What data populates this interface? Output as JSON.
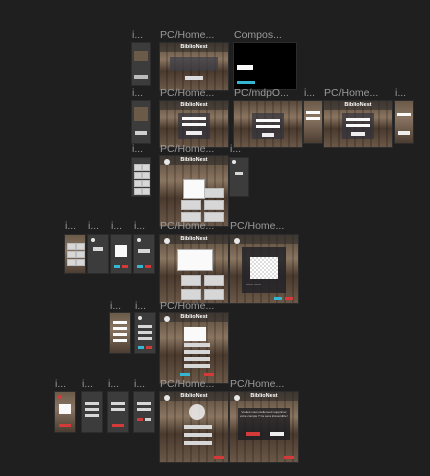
{
  "labels": {
    "c1": "i...",
    "c2": "PC/Home...",
    "c3": "Compos...",
    "r2a": "i...",
    "r2b": "PC/Home...",
    "r2c": "PC/mdpO...",
    "r2d": "i...",
    "r2e": "PC/Home...",
    "r2f": "i...",
    "r3a": "i...",
    "r3b": "PC/Home...",
    "r3c": "i...",
    "r4a": "i...",
    "r4b": "i...",
    "r4c": "i...",
    "r4d": "i...",
    "r4e": "PC/Home...",
    "r4f": "PC/Home...",
    "r5a": "i...",
    "r5b": "i...",
    "r5c": "PC/Home...",
    "r6a": "i...",
    "r6b": "i...",
    "r6c": "i...",
    "r6d": "i...",
    "r6e": "PC/Home...",
    "r6f": "PC/Home..."
  },
  "frames": {
    "app_title": "BiblioNest"
  },
  "dialog": {
    "message": "Voulez-vous réellement supprimer votre compte ? Ce sera irréversible !"
  },
  "colors": {
    "canvas": "#1f1f1f",
    "accent": "#35b6d3",
    "danger": "#d43a3a"
  }
}
